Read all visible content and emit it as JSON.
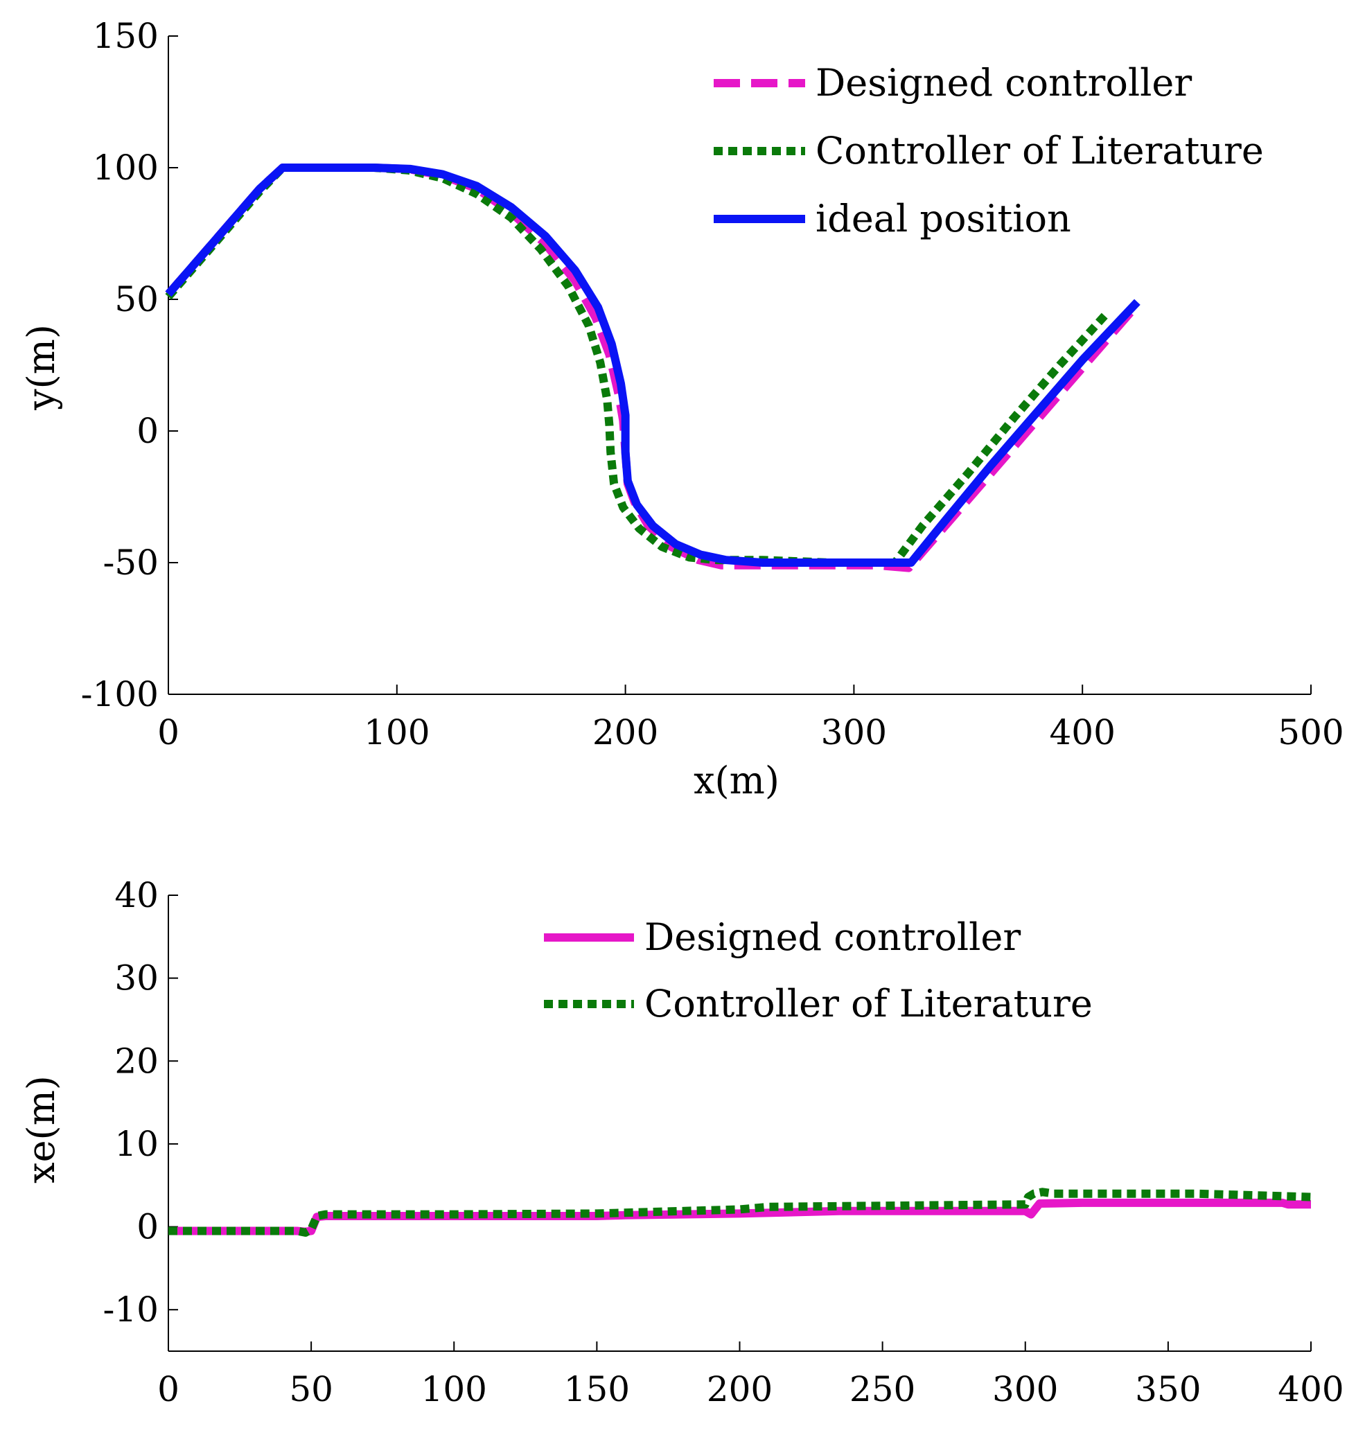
{
  "chart_data": [
    {
      "type": "line",
      "title": "",
      "xlabel": "x(m)",
      "ylabel": "y(m)",
      "xlim": [
        0,
        500
      ],
      "ylim": [
        -100,
        150
      ],
      "xticks": [
        0,
        100,
        200,
        300,
        400,
        500
      ],
      "yticks": [
        -100,
        -50,
        0,
        50,
        100,
        150
      ],
      "grid": false,
      "legend": "top-right",
      "series": [
        {
          "name": "Designed controller",
          "color": "#e617c8",
          "style": "dashed",
          "x": [
            0,
            10,
            20,
            30,
            40,
            50,
            70,
            90,
            105,
            120,
            135,
            150,
            165,
            178,
            187,
            193,
            197,
            199,
            200,
            201,
            204,
            210,
            220,
            232,
            242,
            260,
            290,
            310,
            324,
            340,
            360,
            380,
            400,
            423
          ],
          "y": [
            52,
            62,
            72,
            82,
            92,
            100,
            100,
            100,
            99.5,
            97,
            92,
            83,
            71,
            57,
            43,
            29,
            14,
            4,
            -8,
            -20,
            -27,
            -36,
            -44,
            -49,
            -51,
            -51,
            -51,
            -51,
            -52,
            -36,
            -16,
            4,
            24,
            47
          ]
        },
        {
          "name": "Controller of Literature",
          "color": "#0a7a0a",
          "style": "dotted",
          "x": [
            0,
            10,
            20,
            30,
            40,
            50,
            70,
            90,
            105,
            120,
            135,
            150,
            163,
            175,
            184,
            189,
            192,
            193,
            193.5,
            195,
            199,
            206,
            216,
            228,
            240,
            260,
            290,
            310,
            318,
            330,
            350,
            370,
            390,
            411
          ],
          "y": [
            51,
            61,
            71,
            81,
            91,
            100,
            100,
            100,
            99,
            96,
            90,
            81,
            69,
            55,
            40,
            26,
            12,
            2,
            -8,
            -20,
            -29,
            -37,
            -44,
            -48,
            -49,
            -49,
            -50,
            -50,
            -50,
            -36,
            -16,
            5,
            25,
            45
          ]
        },
        {
          "name": "ideal position",
          "color": "#0a14f5",
          "style": "solid",
          "x": [
            0,
            10,
            20,
            30,
            40,
            50,
            70,
            90,
            106,
            120,
            135,
            150,
            165,
            178,
            188,
            194,
            198,
            200,
            200,
            201,
            205,
            212,
            222,
            233,
            244,
            260,
            290,
            310,
            325,
            340,
            360,
            380,
            400,
            424
          ],
          "y": [
            52,
            62,
            72,
            82,
            92,
            100,
            100,
            100,
            99.5,
            97.5,
            93,
            85,
            74,
            61,
            47,
            33,
            18,
            6,
            -8,
            -19,
            -28,
            -36,
            -43,
            -47,
            -49,
            -50,
            -50,
            -50,
            -50,
            -34,
            -13,
            7,
            27,
            49
          ]
        }
      ]
    },
    {
      "type": "line",
      "title": "",
      "xlabel": "",
      "ylabel": "xe(m)",
      "xlim": [
        0,
        400
      ],
      "ylim": [
        -15,
        40
      ],
      "xticks": [
        0,
        50,
        100,
        150,
        200,
        250,
        300,
        350,
        400
      ],
      "yticks": [
        -10,
        0,
        10,
        20,
        30,
        40
      ],
      "grid": false,
      "legend": "top-center",
      "series": [
        {
          "name": "Designed controller",
          "color": "#e617c8",
          "style": "solid",
          "x": [
            0,
            45,
            48,
            50,
            52,
            55,
            100,
            150,
            160,
            200,
            235,
            300,
            302,
            305,
            320,
            390,
            392,
            400
          ],
          "y": [
            -0.5,
            -0.5,
            -0.6,
            -0.5,
            1.2,
            1.3,
            1.3,
            1.3,
            1.4,
            1.6,
            1.9,
            1.9,
            1.5,
            2.8,
            2.9,
            2.9,
            2.7,
            2.7
          ]
        },
        {
          "name": "Controller of Literature",
          "color": "#0a7a0a",
          "style": "dotted",
          "x": [
            0,
            45,
            48,
            50,
            52,
            55,
            100,
            150,
            200,
            210,
            300,
            301,
            303,
            306,
            310,
            360,
            400
          ],
          "y": [
            -0.5,
            -0.5,
            -0.7,
            -0.3,
            1.3,
            1.5,
            1.5,
            1.6,
            2.1,
            2.4,
            2.7,
            3.6,
            4.0,
            4.2,
            4.0,
            4.0,
            3.6
          ]
        }
      ]
    }
  ]
}
